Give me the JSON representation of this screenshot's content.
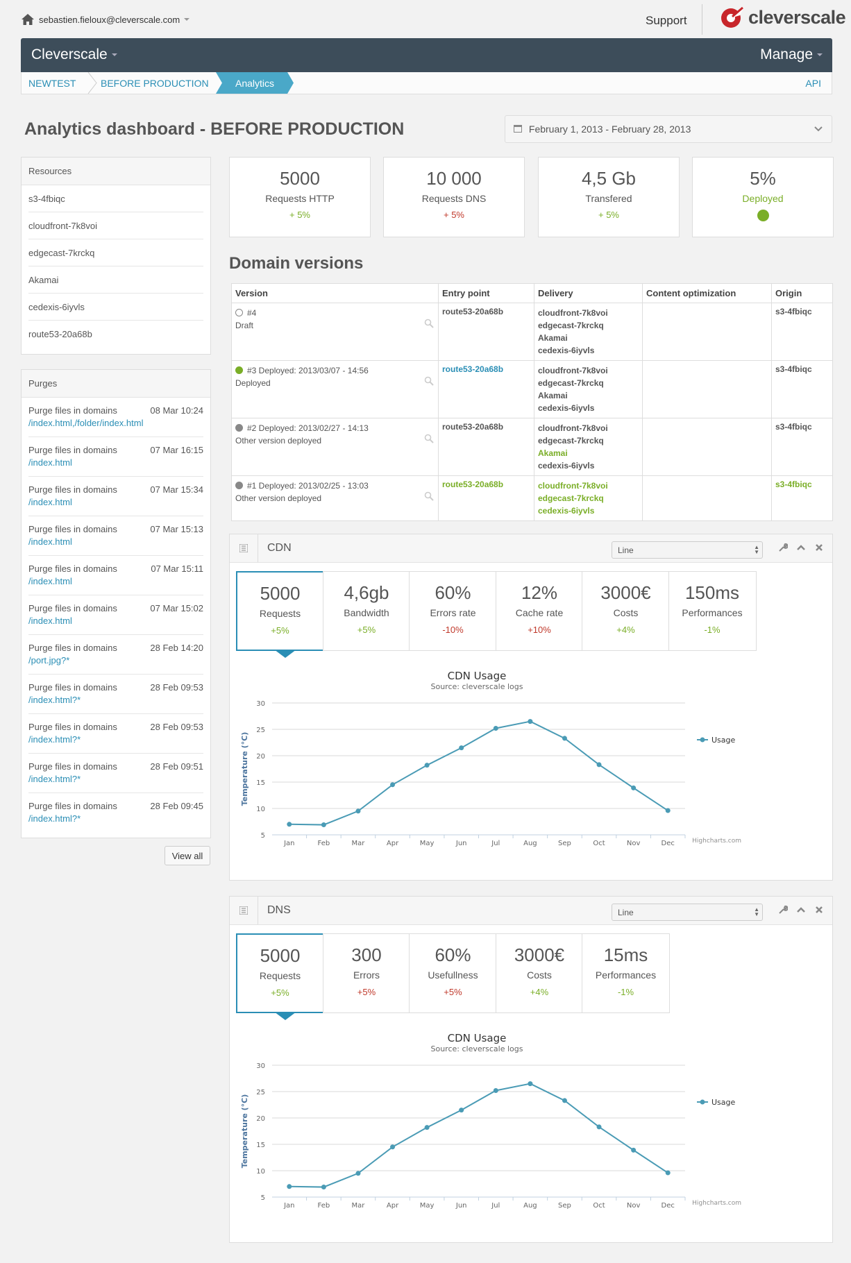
{
  "user": {
    "email": "sebastien.fieloux@cleverscale.com"
  },
  "support": "Support",
  "logo": "cleverscale",
  "navbar": {
    "brand": "Cleverscale",
    "manage": "Manage"
  },
  "breadcrumb": {
    "items": [
      "NEWTEST",
      "BEFORE PRODUCTION"
    ],
    "active": "Analytics",
    "api": "API"
  },
  "page_title": "Analytics dashboard - BEFORE PRODUCTION",
  "date_range": "February 1, 2013 - February 28, 2013",
  "resources": {
    "title": "Resources",
    "items": [
      "s3-4fbiqc",
      "cloudfront-7k8voi",
      "edgecast-7krckq",
      "Akamai",
      "cedexis-6iyvls",
      "route53-20a68b"
    ]
  },
  "purges": {
    "title": "Purges",
    "items": [
      {
        "title": "Purge files in domains",
        "time": "08 Mar 10:24",
        "path": "/index.html,/folder/index.html"
      },
      {
        "title": "Purge files in domains",
        "time": "07 Mar 16:15",
        "path": "/index.html"
      },
      {
        "title": "Purge files in domains",
        "time": "07 Mar 15:34",
        "path": "/index.html"
      },
      {
        "title": "Purge files in domains",
        "time": "07 Mar 15:13",
        "path": "/index.html"
      },
      {
        "title": "Purge files in domains",
        "time": "07 Mar 15:11",
        "path": "/index.html"
      },
      {
        "title": "Purge files in domains",
        "time": "07 Mar 15:02",
        "path": "/index.html"
      },
      {
        "title": "Purge files in domains",
        "time": "28 Feb 14:20",
        "path": "/port.jpg?*"
      },
      {
        "title": "Purge files in domains",
        "time": "28 Feb 09:53",
        "path": "/index.html?*"
      },
      {
        "title": "Purge files in domains",
        "time": "28 Feb 09:53",
        "path": "/index.html?*"
      },
      {
        "title": "Purge files in domains",
        "time": "28 Feb 09:51",
        "path": "/index.html?*"
      },
      {
        "title": "Purge files in domains",
        "time": "28 Feb 09:45",
        "path": "/index.html?*"
      }
    ],
    "view_all": "View all"
  },
  "kpis": [
    {
      "value": "5000",
      "label": "Requests HTTP",
      "delta": "+ 5%"
    },
    {
      "value": "10 000",
      "label": "Requests DNS",
      "delta": "+ 5%"
    },
    {
      "value": "4,5 Gb",
      "label": "Transfered",
      "delta": "+ 5%"
    },
    {
      "value": "5%",
      "label": "Deployed",
      "status_color": "#7aae27"
    }
  ],
  "domain_versions": {
    "title": "Domain versions",
    "headers": [
      "Version",
      "Entry point",
      "Delivery",
      "Content optimization",
      "Origin"
    ],
    "rows": [
      {
        "version": "#4",
        "status": "Draft",
        "entry": "route53-20a68b",
        "delivery": [
          "cloudfront-7k8voi",
          "edgecast-7krckq",
          "Akamai",
          "cedexis-6iyvls"
        ],
        "origin": "s3-4fbiqc"
      },
      {
        "version": "#3 Deployed: 2013/03/07 - 14:56",
        "status": "Deployed",
        "entry": "route53-20a68b",
        "delivery": [
          "cloudfront-7k8voi",
          "edgecast-7krckq",
          "Akamai",
          "cedexis-6iyvls"
        ],
        "origin": "s3-4fbiqc"
      },
      {
        "version": "#2 Deployed: 2013/02/27 - 14:13",
        "status": "Other version deployed",
        "entry": "route53-20a68b",
        "delivery": [
          "cloudfront-7k8voi",
          "edgecast-7krckq",
          "Akamai",
          "cedexis-6iyvls"
        ],
        "origin": "s3-4fbiqc"
      },
      {
        "version": "#1 Deployed: 2013/02/25 - 13:03",
        "status": "Other version deployed",
        "entry": "route53-20a68b",
        "delivery": [
          "cloudfront-7k8voi",
          "edgecast-7krckq",
          "cedexis-6iyvls"
        ],
        "origin": "s3-4fbiqc"
      }
    ]
  },
  "cdn_widget": {
    "title": "CDN",
    "select": "Line",
    "stats": [
      {
        "value": "5000",
        "label": "Requests",
        "delta": "+5%"
      },
      {
        "value": "4,6gb",
        "label": "Bandwidth",
        "delta": "+5%"
      },
      {
        "value": "60%",
        "label": "Errors rate",
        "delta": "-10%"
      },
      {
        "value": "12%",
        "label": "Cache rate",
        "delta": "+10%"
      },
      {
        "value": "3000€",
        "label": "Costs",
        "delta": "+4%"
      },
      {
        "value": "150ms",
        "label": "Performances",
        "delta": "-1%"
      }
    ]
  },
  "dns_widget": {
    "title": "DNS",
    "select": "Line",
    "stats": [
      {
        "value": "5000",
        "label": "Requests",
        "delta": "+5%"
      },
      {
        "value": "300",
        "label": "Errors",
        "delta": "+5%"
      },
      {
        "value": "60%",
        "label": "Usefullness",
        "delta": "+5%"
      },
      {
        "value": "3000€",
        "label": "Costs",
        "delta": "+4%"
      },
      {
        "value": "15ms",
        "label": "Performances",
        "delta": "-1%"
      }
    ]
  },
  "colors": {
    "accent": "#2a8eb5",
    "navbar": "#3d4d5a",
    "positive": "#7aae27",
    "negative": "#c0392b",
    "series": "#4a9bb5"
  },
  "chart_data": [
    {
      "type": "line",
      "title": "CDN Usage",
      "subtitle": "Source: cleverscale logs",
      "xlabel": "",
      "ylabel": "Temperature (°C)",
      "categories": [
        "Jan",
        "Feb",
        "Mar",
        "Apr",
        "May",
        "Jun",
        "Jul",
        "Aug",
        "Sep",
        "Oct",
        "Nov",
        "Dec"
      ],
      "series": [
        {
          "name": "Usage",
          "values": [
            7.0,
            6.9,
            9.5,
            14.5,
            18.2,
            21.5,
            25.2,
            26.5,
            23.3,
            18.3,
            13.9,
            9.6
          ]
        }
      ],
      "ylim": [
        5,
        30
      ],
      "yticks": [
        5,
        10,
        15,
        20,
        25,
        30
      ],
      "legend": "right",
      "credits": "Highcharts.com"
    },
    {
      "type": "line",
      "title": "CDN Usage",
      "subtitle": "Source: cleverscale logs",
      "xlabel": "",
      "ylabel": "Temperature (°C)",
      "categories": [
        "Jan",
        "Feb",
        "Mar",
        "Apr",
        "May",
        "Jun",
        "Jul",
        "Aug",
        "Sep",
        "Oct",
        "Nov",
        "Dec"
      ],
      "series": [
        {
          "name": "Usage",
          "values": [
            7.0,
            6.9,
            9.5,
            14.5,
            18.2,
            21.5,
            25.2,
            26.5,
            23.3,
            18.3,
            13.9,
            9.6
          ]
        }
      ],
      "ylim": [
        5,
        30
      ],
      "yticks": [
        5,
        10,
        15,
        20,
        25,
        30
      ],
      "legend": "right",
      "credits": "Highcharts.com"
    }
  ]
}
